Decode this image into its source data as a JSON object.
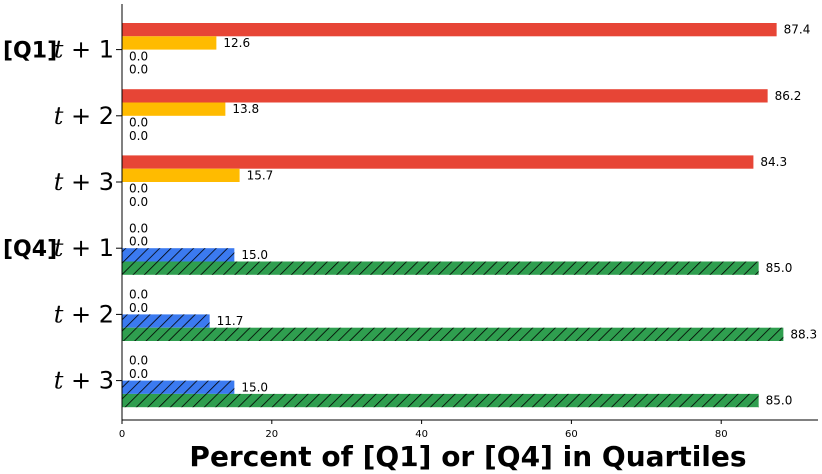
{
  "chart_data": {
    "type": "bar",
    "orientation": "horizontal",
    "xlabel": "Percent of [Q1] or [Q4] in Quartiles",
    "xlim": [
      0,
      93
    ],
    "xticks": [
      "0",
      "20",
      "40",
      "60",
      "80"
    ],
    "group_labels": [
      "[Q1]",
      "[Q4]"
    ],
    "categories": [
      {
        "group": "[Q1]",
        "label": "t + 1"
      },
      {
        "group": "",
        "label": "t + 2"
      },
      {
        "group": "",
        "label": "t + 3"
      },
      {
        "group": "[Q4]",
        "label": "t + 1"
      },
      {
        "group": "",
        "label": "t + 2"
      },
      {
        "group": "",
        "label": "t + 3"
      }
    ],
    "series": [
      {
        "color": "#e74536",
        "hatch": false,
        "values": [
          87.4,
          86.2,
          84.3,
          0.0,
          0.0,
          0.0
        ],
        "labels": [
          "87.4",
          "86.2",
          "84.3",
          "0.0",
          "0.0",
          "0.0"
        ]
      },
      {
        "color": "#ffbb00",
        "hatch": false,
        "values": [
          12.6,
          13.8,
          15.7,
          0.0,
          0.0,
          0.0
        ],
        "labels": [
          "12.6",
          "13.8",
          "15.7",
          "0.0",
          "0.0",
          "0.0"
        ]
      },
      {
        "color": "#3b7af0",
        "hatch": true,
        "values": [
          0.0,
          0.0,
          0.0,
          15.0,
          11.7,
          15.0
        ],
        "labels": [
          "0.0",
          "0.0",
          "0.0",
          "15.0",
          "11.7",
          "15.0"
        ]
      },
      {
        "color": "#2f9e4f",
        "hatch": true,
        "values": [
          0.0,
          0.0,
          0.0,
          85.0,
          88.3,
          85.0
        ],
        "labels": [
          "0.0",
          "0.0",
          "0.0",
          "85.0",
          "88.3",
          "85.0"
        ]
      }
    ]
  }
}
